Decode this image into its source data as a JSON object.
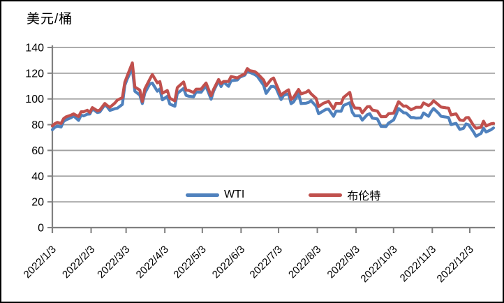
{
  "chart_data": {
    "type": "line",
    "ylabel": "美元/桶",
    "ylim": [
      0,
      140
    ],
    "ytick_interval": 20,
    "yticks": [
      0,
      20,
      40,
      60,
      80,
      100,
      120,
      140
    ],
    "xtick_labels": [
      "2022/1/3",
      "2022/2/3",
      "2022/3/3",
      "2022/4/3",
      "2022/5/3",
      "2022/6/3",
      "2022/7/3",
      "2022/8/3",
      "2022/9/3",
      "2022/10/3",
      "2022/11/3",
      "2022/12/3"
    ],
    "grid": "horizontal",
    "legend_position": "bottom-inside",
    "x_dates": [
      "2022/1/3",
      "2022/1/5",
      "2022/1/7",
      "2022/1/10",
      "2022/1/12",
      "2022/1/14",
      "2022/1/18",
      "2022/1/20",
      "2022/1/24",
      "2022/1/26",
      "2022/1/28",
      "2022/1/31",
      "2022/2/2",
      "2022/2/4",
      "2022/2/8",
      "2022/2/10",
      "2022/2/14",
      "2022/2/16",
      "2022/2/18",
      "2022/2/22",
      "2022/2/24",
      "2022/2/28",
      "2022/3/2",
      "2022/3/4",
      "2022/3/8",
      "2022/3/10",
      "2022/3/14",
      "2022/3/16",
      "2022/3/18",
      "2022/3/22",
      "2022/3/24",
      "2022/3/28",
      "2022/3/30",
      "2022/4/1",
      "2022/4/5",
      "2022/4/7",
      "2022/4/11",
      "2022/4/13",
      "2022/4/18",
      "2022/4/20",
      "2022/4/22",
      "2022/4/26",
      "2022/4/28",
      "2022/5/2",
      "2022/5/4",
      "2022/5/6",
      "2022/5/10",
      "2022/5/12",
      "2022/5/16",
      "2022/5/18",
      "2022/5/20",
      "2022/5/24",
      "2022/5/26",
      "2022/5/31",
      "2022/6/2",
      "2022/6/6",
      "2022/6/8",
      "2022/6/10",
      "2022/6/14",
      "2022/6/16",
      "2022/6/21",
      "2022/6/23",
      "2022/6/27",
      "2022/6/29",
      "2022/7/1",
      "2022/7/5",
      "2022/7/7",
      "2022/7/11",
      "2022/7/13",
      "2022/7/15",
      "2022/7/19",
      "2022/7/21",
      "2022/7/25",
      "2022/7/27",
      "2022/7/29",
      "2022/8/2",
      "2022/8/4",
      "2022/8/8",
      "2022/8/10",
      "2022/8/12",
      "2022/8/16",
      "2022/8/18",
      "2022/8/22",
      "2022/8/24",
      "2022/8/29",
      "2022/8/31",
      "2022/9/2",
      "2022/9/6",
      "2022/9/8",
      "2022/9/12",
      "2022/9/14",
      "2022/9/16",
      "2022/9/20",
      "2022/9/23",
      "2022/9/27",
      "2022/9/29",
      "2022/10/3",
      "2022/10/5",
      "2022/10/7",
      "2022/10/11",
      "2022/10/13",
      "2022/10/17",
      "2022/10/19",
      "2022/10/21",
      "2022/10/25",
      "2022/10/27",
      "2022/10/31",
      "2022/11/2",
      "2022/11/4",
      "2022/11/8",
      "2022/11/10",
      "2022/11/14",
      "2022/11/16",
      "2022/11/18",
      "2022/11/22",
      "2022/11/25",
      "2022/11/28",
      "2022/11/30",
      "2022/12/2",
      "2022/12/6",
      "2022/12/8",
      "2022/12/12",
      "2022/12/14",
      "2022/12/16",
      "2022/12/20",
      "2022/12/22"
    ],
    "series": [
      {
        "name": "WTI",
        "color": "#4F81BD",
        "values": [
          76.1,
          77.9,
          78.9,
          78.2,
          82.6,
          83.8,
          85.4,
          86.9,
          83.3,
          87.4,
          86.8,
          88.2,
          88.3,
          92.3,
          89.4,
          89.9,
          95.5,
          93.7,
          91.1,
          92.4,
          92.8,
          95.7,
          110.6,
          115.7,
          123.7,
          106.0,
          103.0,
          96.4,
          104.7,
          111.8,
          112.3,
          106.0,
          107.8,
          99.3,
          102.0,
          96.0,
          94.3,
          104.3,
          108.2,
          102.8,
          102.1,
          101.7,
          105.4,
          105.2,
          107.8,
          109.8,
          99.8,
          106.1,
          114.2,
          109.6,
          113.2,
          109.8,
          114.1,
          114.7,
          116.9,
          118.5,
          122.1,
          120.7,
          118.9,
          117.6,
          110.7,
          104.3,
          109.6,
          109.8,
          108.4,
          99.5,
          102.7,
          104.1,
          96.3,
          97.6,
          104.2,
          96.4,
          96.7,
          97.3,
          98.6,
          94.4,
          88.5,
          90.8,
          91.9,
          92.1,
          86.5,
          90.5,
          90.4,
          94.9,
          97.0,
          89.6,
          86.9,
          86.9,
          83.5,
          87.8,
          88.5,
          85.1,
          84.5,
          78.7,
          78.5,
          81.2,
          83.6,
          87.8,
          92.6,
          89.3,
          89.1,
          85.5,
          85.6,
          85.1,
          85.3,
          89.1,
          86.5,
          90.0,
          92.6,
          88.9,
          86.5,
          85.9,
          85.6,
          80.1,
          81.0,
          76.3,
          77.2,
          80.6,
          80.0,
          74.3,
          71.0,
          73.2,
          77.3,
          74.3,
          76.1,
          77.5
        ]
      },
      {
        "name": "布伦特",
        "color": "#C0504D",
        "values": [
          79.0,
          80.8,
          81.8,
          80.9,
          84.7,
          86.1,
          87.5,
          88.4,
          86.3,
          90.0,
          90.0,
          91.2,
          89.5,
          93.3,
          90.8,
          91.4,
          96.5,
          94.8,
          93.5,
          96.8,
          99.1,
          101.0,
          112.9,
          118.1,
          128.0,
          109.3,
          106.9,
          98.0,
          107.9,
          115.5,
          119.0,
          112.5,
          113.5,
          104.4,
          106.6,
          100.6,
          98.5,
          108.8,
          113.2,
          106.8,
          106.7,
          105.0,
          107.6,
          107.6,
          110.1,
          112.4,
          102.5,
          107.5,
          115.1,
          111.9,
          113.6,
          113.6,
          117.4,
          116.3,
          117.6,
          119.5,
          123.6,
          122.0,
          121.2,
          119.8,
          114.7,
          110.1,
          115.1,
          116.3,
          111.6,
          102.8,
          104.7,
          107.1,
          99.6,
          101.2,
          107.4,
          103.9,
          105.2,
          106.6,
          104.0,
          100.5,
          94.1,
          96.7,
          97.4,
          98.2,
          92.3,
          96.6,
          96.5,
          101.2,
          105.1,
          96.5,
          93.0,
          92.8,
          89.2,
          94.0,
          94.1,
          91.4,
          90.6,
          86.2,
          86.3,
          88.5,
          88.9,
          93.4,
          97.9,
          94.3,
          94.6,
          91.6,
          92.4,
          93.5,
          93.5,
          96.9,
          94.8,
          96.2,
          98.6,
          95.4,
          93.7,
          93.1,
          92.9,
          87.6,
          88.4,
          83.6,
          83.2,
          85.4,
          85.6,
          79.4,
          77.2,
          78.0,
          82.7,
          79.0,
          80.7,
          81.0
        ]
      }
    ],
    "colors": {
      "axis": "#808080",
      "gridline": "#A0A0A0",
      "text": "#000000",
      "background": "#FFFFFF"
    }
  }
}
